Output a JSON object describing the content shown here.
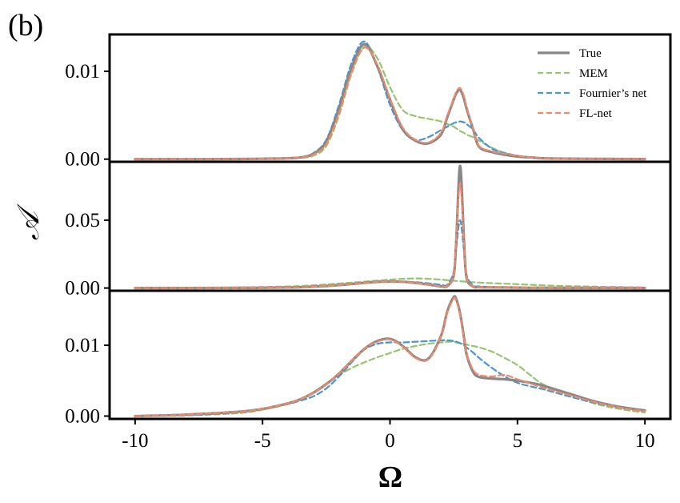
{
  "chart_data": {
    "type": "line",
    "panel_tag": "(b)",
    "xlabel": "Ω",
    "ylabel": "𝒜",
    "xlim": [
      -11,
      11
    ],
    "x_ticks": [
      -10,
      -5,
      0,
      5,
      10
    ],
    "x_tick_labels": [
      "-10",
      "-5",
      "0",
      "5",
      "10"
    ],
    "legend": {
      "placement": "top-right",
      "entries": [
        {
          "name": "True",
          "color": "#888888",
          "style": "solid"
        },
        {
          "name": "MEM",
          "color": "#96c46f",
          "style": "dashed"
        },
        {
          "name": "Fournier’s net",
          "color": "#4a95d0",
          "style": "dashed"
        },
        {
          "name": "FL-net",
          "color": "#f08a6a",
          "style": "dashed"
        }
      ]
    },
    "x": [
      -10,
      -8,
      -6,
      -5,
      -4,
      -3.5,
      -3,
      -2.5,
      -2,
      -1.5,
      -1,
      -0.5,
      0,
      0.5,
      1,
      1.5,
      2,
      2.25,
      2.5,
      2.6,
      2.75,
      2.9,
      3,
      3.25,
      3.5,
      4,
      4.5,
      5,
      5.5,
      6,
      7,
      8,
      9,
      10
    ],
    "panels": [
      {
        "ylim": [
          -0.0003,
          0.0142
        ],
        "y_ticks": [
          0.0,
          0.01
        ],
        "y_tick_labels": [
          "0.00",
          "0.01"
        ],
        "series": [
          {
            "name": "True",
            "values": [
              0.0,
              0.0,
              2e-05,
              5e-05,
              0.0001,
              0.0002,
              0.0006,
              0.002,
              0.0058,
              0.0105,
              0.0131,
              0.0106,
              0.0068,
              0.0034,
              0.0021,
              0.0018,
              0.0028,
              0.0048,
              0.0068,
              0.0075,
              0.0079,
              0.0069,
              0.0058,
              0.0035,
              0.0014,
              0.0008,
              0.0005,
              0.0003,
              0.0002,
              0.0001,
              6e-05,
              4e-05,
              2e-05,
              1e-05
            ]
          },
          {
            "name": "MEM",
            "values": [
              0.0,
              0.0,
              2e-05,
              4e-05,
              8e-05,
              0.00015,
              0.0004,
              0.0015,
              0.005,
              0.0098,
              0.0128,
              0.0115,
              0.0082,
              0.0056,
              0.0049,
              0.0046,
              0.0043,
              0.004,
              0.0037,
              0.0035,
              0.0032,
              0.003,
              0.0028,
              0.0025,
              0.0021,
              0.0013,
              0.0007,
              0.0004,
              0.0002,
              0.0001,
              5e-05,
              3e-05,
              2e-05,
              1e-05
            ]
          },
          {
            "name": "Fournier’s net",
            "values": [
              0.0,
              0.0,
              2e-05,
              5e-05,
              0.0001,
              0.0002,
              0.0007,
              0.0022,
              0.0062,
              0.011,
              0.0134,
              0.0105,
              0.0062,
              0.0033,
              0.0022,
              0.0025,
              0.0033,
              0.0037,
              0.0041,
              0.0042,
              0.0043,
              0.0042,
              0.004,
              0.0034,
              0.0024,
              0.0012,
              0.0007,
              0.0004,
              0.0002,
              0.0001,
              6e-05,
              4e-05,
              2e-05,
              1e-05
            ]
          },
          {
            "name": "FL-net",
            "values": [
              0.0,
              0.0,
              2e-05,
              5e-05,
              0.0001,
              0.0002,
              0.0005,
              0.0017,
              0.0052,
              0.0099,
              0.0127,
              0.0108,
              0.0069,
              0.0036,
              0.0022,
              0.0019,
              0.003,
              0.005,
              0.0069,
              0.0077,
              0.0081,
              0.0072,
              0.006,
              0.0036,
              0.0015,
              0.0009,
              0.0006,
              0.0004,
              0.0002,
              0.0001,
              6e-05,
              4e-05,
              2e-05,
              1e-05
            ]
          }
        ]
      },
      {
        "ylim": [
          -0.002,
          0.093
        ],
        "y_ticks": [
          0.0,
          0.05
        ],
        "y_tick_labels": [
          "0.00",
          "0.05"
        ],
        "series": [
          {
            "name": "True",
            "values": [
              0.0,
              0.0,
              0.0001,
              0.0002,
              0.0004,
              0.0006,
              0.001,
              0.0015,
              0.0022,
              0.003,
              0.0038,
              0.0045,
              0.0048,
              0.0046,
              0.0038,
              0.0026,
              0.0012,
              0.0015,
              0.0095,
              0.035,
              0.09,
              0.036,
              0.008,
              0.0012,
              0.0006,
              0.0005,
              0.0004,
              0.0003,
              0.0002,
              0.0002,
              0.0001,
              0.0001,
              0.0001,
              0.0
            ]
          },
          {
            "name": "MEM",
            "values": [
              0.0,
              0.0002,
              0.0005,
              0.0008,
              0.0012,
              0.0015,
              0.002,
              0.0026,
              0.0033,
              0.004,
              0.0047,
              0.0055,
              0.0062,
              0.0068,
              0.0071,
              0.0068,
              0.0062,
              0.0058,
              0.0054,
              0.0052,
              0.005,
              0.0048,
              0.0046,
              0.0043,
              0.004,
              0.0036,
              0.0032,
              0.0028,
              0.0024,
              0.002,
              0.0014,
              0.001,
              0.0007,
              0.0005
            ]
          },
          {
            "name": "Fournier’s net",
            "values": [
              0.0,
              0.0,
              0.0001,
              0.0002,
              0.0004,
              0.0006,
              0.001,
              0.0015,
              0.0022,
              0.003,
              0.0038,
              0.0044,
              0.0047,
              0.0047,
              0.0043,
              0.0035,
              0.0024,
              0.0025,
              0.012,
              0.03,
              0.05,
              0.028,
              0.01,
              0.002,
              0.0012,
              0.0008,
              0.0005,
              0.0004,
              0.0003,
              0.0002,
              0.0001,
              0.0001,
              0.0001,
              0.0
            ]
          },
          {
            "name": "FL-net",
            "values": [
              0.0,
              0.0,
              0.0001,
              0.0002,
              0.0004,
              0.0006,
              0.001,
              0.0015,
              0.0022,
              0.003,
              0.0038,
              0.0045,
              0.0048,
              0.0046,
              0.0038,
              0.0026,
              0.0013,
              0.0016,
              0.01,
              0.038,
              0.077,
              0.034,
              0.0085,
              0.0013,
              0.0006,
              0.0005,
              0.0004,
              0.0003,
              0.0002,
              0.0002,
              0.0001,
              0.0001,
              0.0001,
              0.0
            ]
          }
        ]
      },
      {
        "ylim": [
          -0.0004,
          0.0177
        ],
        "y_ticks": [
          0.0,
          0.01
        ],
        "y_tick_labels": [
          "0.00",
          "0.01"
        ],
        "series": [
          {
            "name": "True",
            "values": [
              0.0,
              0.0002,
              0.0006,
              0.001,
              0.0018,
              0.0024,
              0.0033,
              0.0045,
              0.006,
              0.0078,
              0.0095,
              0.0106,
              0.0109,
              0.0099,
              0.0083,
              0.0081,
              0.0113,
              0.0148,
              0.0168,
              0.0165,
              0.0145,
              0.0112,
              0.0088,
              0.0063,
              0.0055,
              0.0053,
              0.0052,
              0.005,
              0.0047,
              0.0043,
              0.0032,
              0.0021,
              0.0013,
              0.0008
            ]
          },
          {
            "name": "MEM",
            "values": [
              0.0,
              0.0001,
              0.0004,
              0.0009,
              0.0017,
              0.0024,
              0.0034,
              0.0046,
              0.0058,
              0.0068,
              0.0076,
              0.0083,
              0.0089,
              0.0095,
              0.0099,
              0.0102,
              0.0104,
              0.0105,
              0.0105,
              0.0104,
              0.0103,
              0.0102,
              0.0101,
              0.0099,
              0.0097,
              0.0091,
              0.0082,
              0.0072,
              0.0058,
              0.0045,
              0.003,
              0.0018,
              0.001,
              0.0005
            ]
          },
          {
            "name": "Fournier’s net",
            "values": [
              0.0,
              0.0001,
              0.0005,
              0.001,
              0.0017,
              0.0022,
              0.0028,
              0.0039,
              0.0056,
              0.0076,
              0.0094,
              0.0102,
              0.0104,
              0.0104,
              0.0105,
              0.0106,
              0.0107,
              0.0107,
              0.0106,
              0.0105,
              0.0103,
              0.01,
              0.0097,
              0.009,
              0.0082,
              0.0068,
              0.0056,
              0.0047,
              0.0042,
              0.0038,
              0.0028,
              0.0019,
              0.0012,
              0.0007
            ]
          },
          {
            "name": "FL-net",
            "values": [
              0.0,
              0.0002,
              0.0006,
              0.001,
              0.0018,
              0.0024,
              0.0033,
              0.0045,
              0.006,
              0.0078,
              0.0095,
              0.0105,
              0.0108,
              0.0098,
              0.0082,
              0.008,
              0.0112,
              0.0146,
              0.0166,
              0.0163,
              0.0143,
              0.0111,
              0.0089,
              0.0066,
              0.0058,
              0.0056,
              0.0058,
              0.0052,
              0.0046,
              0.004,
              0.003,
              0.002,
              0.0012,
              0.0007
            ]
          }
        ]
      }
    ]
  }
}
